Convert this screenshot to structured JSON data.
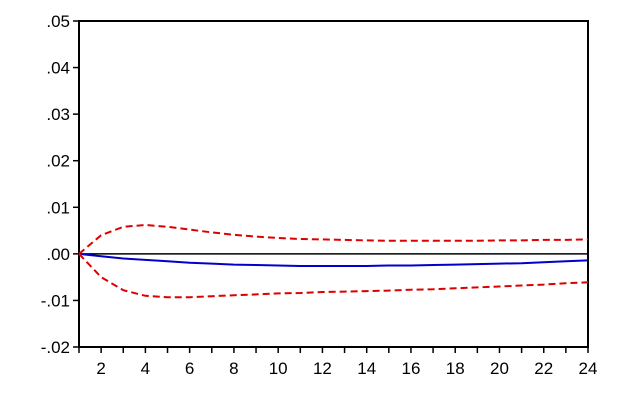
{
  "chart_data": {
    "type": "line",
    "x": [
      1,
      2,
      3,
      4,
      5,
      6,
      7,
      8,
      9,
      10,
      11,
      12,
      13,
      14,
      15,
      16,
      17,
      18,
      19,
      20,
      21,
      22,
      23,
      24
    ],
    "xlim": [
      1,
      24
    ],
    "ylim": [
      -0.02,
      0.05
    ],
    "x_ticks": [
      2,
      4,
      6,
      8,
      10,
      12,
      14,
      16,
      18,
      20,
      22,
      24
    ],
    "x_tick_labels": [
      "2",
      "4",
      "6",
      "8",
      "10",
      "12",
      "14",
      "16",
      "18",
      "20",
      "22",
      "24"
    ],
    "y_ticks": [
      -0.02,
      -0.01,
      0.0,
      0.01,
      0.02,
      0.03,
      0.04,
      0.05
    ],
    "y_tick_labels": [
      "-.02",
      "-.01",
      ".00",
      ".01",
      ".02",
      ".03",
      ".04",
      ".05"
    ],
    "reference_line_y": 0.0,
    "grid": false,
    "series": [
      {
        "style": "solid",
        "color": "#0000cc",
        "values": [
          0.0,
          -0.0005,
          -0.001,
          -0.0013,
          -0.0016,
          -0.0019,
          -0.0021,
          -0.0023,
          -0.0024,
          -0.0025,
          -0.0026,
          -0.0026,
          -0.0026,
          -0.0026,
          -0.0025,
          -0.0025,
          -0.0024,
          -0.0023,
          -0.0022,
          -0.0021,
          -0.002,
          -0.0018,
          -0.0016,
          -0.0014
        ]
      },
      {
        "style": "dashed",
        "color": "#dd0000",
        "values": [
          0.0,
          0.004,
          0.0058,
          0.0062,
          0.0058,
          0.0052,
          0.0046,
          0.0041,
          0.0037,
          0.0034,
          0.0032,
          0.0031,
          0.003,
          0.0029,
          0.0028,
          0.0028,
          0.0028,
          0.0028,
          0.0028,
          0.0029,
          0.0029,
          0.003,
          0.003,
          0.0031
        ]
      },
      {
        "style": "dashed",
        "color": "#dd0000",
        "values": [
          0.0,
          -0.005,
          -0.0078,
          -0.009,
          -0.0093,
          -0.0093,
          -0.0091,
          -0.0089,
          -0.0087,
          -0.0085,
          -0.0084,
          -0.0082,
          -0.0081,
          -0.008,
          -0.0079,
          -0.0077,
          -0.0076,
          -0.0074,
          -0.0072,
          -0.007,
          -0.0068,
          -0.0066,
          -0.0063,
          -0.0061
        ]
      }
    ]
  }
}
